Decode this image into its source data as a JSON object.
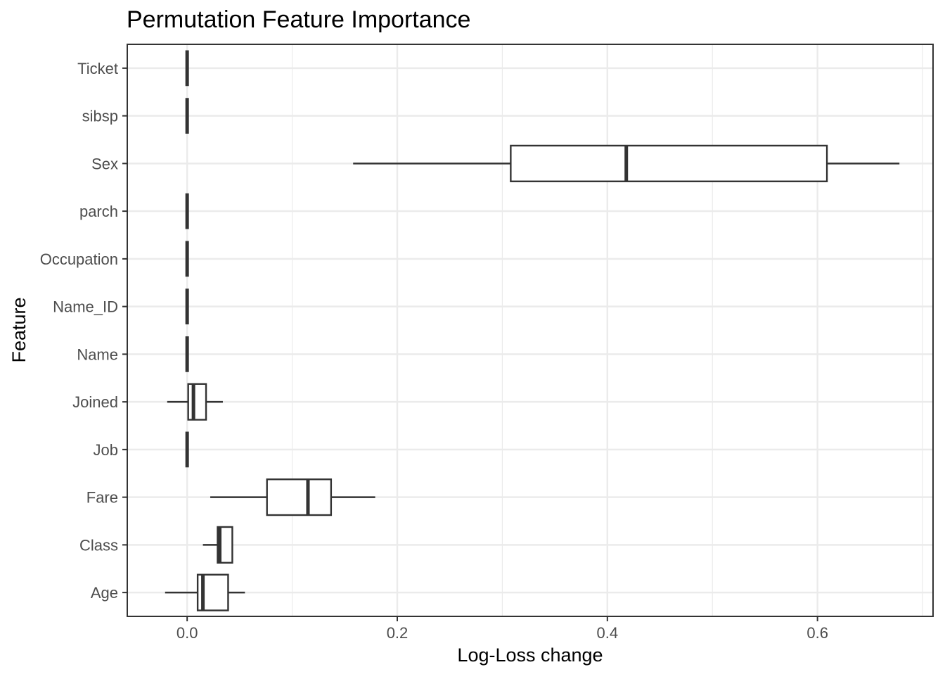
{
  "chart_data": {
    "type": "boxplot",
    "title": "Permutation Feature Importance",
    "xlabel": "Log-Loss change",
    "ylabel": "Feature",
    "xlim": [
      -0.057,
      0.71
    ],
    "xticks": [
      0.0,
      0.2,
      0.4,
      0.6
    ],
    "xtick_labels": [
      "0.0",
      "0.2",
      "0.4",
      "0.6"
    ],
    "grid": true,
    "legend": "none",
    "categories": [
      "Age",
      "Class",
      "Fare",
      "Job",
      "Joined",
      "Name",
      "Name_ID",
      "Occupation",
      "parch",
      "Sex",
      "sibsp",
      "Ticket"
    ],
    "boxes": [
      {
        "feature": "Age",
        "min": -0.021,
        "q1": 0.01,
        "median": 0.015,
        "q3": 0.039,
        "max": 0.055
      },
      {
        "feature": "Class",
        "min": 0.015,
        "q1": 0.029,
        "median": 0.031,
        "q3": 0.043,
        "max": 0.043
      },
      {
        "feature": "Fare",
        "min": 0.022,
        "q1": 0.076,
        "median": 0.115,
        "q3": 0.137,
        "max": 0.179
      },
      {
        "feature": "Job",
        "min": 0.0,
        "q1": 0.0,
        "median": 0.0,
        "q3": 0.0,
        "max": 0.0
      },
      {
        "feature": "Joined",
        "min": -0.019,
        "q1": 0.001,
        "median": 0.006,
        "q3": 0.018,
        "max": 0.034
      },
      {
        "feature": "Name",
        "min": 0.0,
        "q1": 0.0,
        "median": 0.0,
        "q3": 0.0,
        "max": 0.0
      },
      {
        "feature": "Name_ID",
        "min": 0.0,
        "q1": 0.0,
        "median": 0.0,
        "q3": 0.0,
        "max": 0.0
      },
      {
        "feature": "Occupation",
        "min": 0.0,
        "q1": 0.0,
        "median": 0.0,
        "q3": 0.0,
        "max": 0.0
      },
      {
        "feature": "parch",
        "min": 0.0,
        "q1": 0.0,
        "median": 0.0,
        "q3": 0.0,
        "max": 0.0
      },
      {
        "feature": "Sex",
        "min": 0.158,
        "q1": 0.308,
        "median": 0.418,
        "q3": 0.609,
        "max": 0.678
      },
      {
        "feature": "sibsp",
        "min": 0.0,
        "q1": 0.0,
        "median": 0.0,
        "q3": 0.0,
        "max": 0.0
      },
      {
        "feature": "Ticket",
        "min": 0.0,
        "q1": 0.0,
        "median": 0.0,
        "q3": 0.0,
        "max": 0.0
      }
    ]
  }
}
